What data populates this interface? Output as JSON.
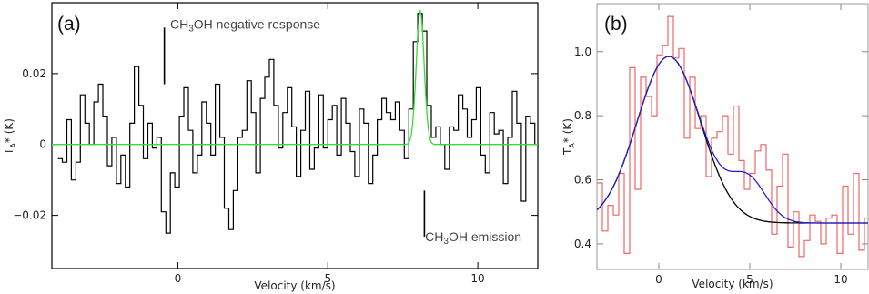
{
  "chart_data": [
    {
      "panel": "(a)",
      "type": "line",
      "xlabel": "Velocity (km/s)",
      "ylabel": "T_A* (K)",
      "xlim": [
        -4.2,
        12.0
      ],
      "ylim": [
        -0.035,
        0.04
      ],
      "xticks": [
        0,
        5,
        10
      ],
      "yticks": [
        -0.02,
        0,
        0.02
      ],
      "ytick_labels": [
        "−0.02",
        "0",
        "0.02"
      ],
      "series": [
        {
          "color": "#000000",
          "style": "step",
          "x": [
            -4.0,
            -3.85,
            -3.7,
            -3.55,
            -3.4,
            -3.25,
            -3.1,
            -2.95,
            -2.8,
            -2.65,
            -2.5,
            -2.35,
            -2.2,
            -2.05,
            -1.9,
            -1.75,
            -1.6,
            -1.45,
            -1.3,
            -1.15,
            -1.0,
            -0.85,
            -0.7,
            -0.55,
            -0.4,
            -0.25,
            -0.1,
            0.05,
            0.2,
            0.35,
            0.5,
            0.65,
            0.8,
            0.95,
            1.1,
            1.25,
            1.4,
            1.55,
            1.7,
            1.85,
            2.0,
            2.15,
            2.3,
            2.45,
            2.6,
            2.75,
            2.9,
            3.05,
            3.2,
            3.35,
            3.5,
            3.65,
            3.8,
            3.95,
            4.1,
            4.25,
            4.4,
            4.55,
            4.7,
            4.85,
            5.0,
            5.15,
            5.3,
            5.45,
            5.6,
            5.75,
            5.9,
            6.05,
            6.2,
            6.35,
            6.5,
            6.65,
            6.8,
            6.95,
            7.1,
            7.25,
            7.4,
            7.55,
            7.7,
            7.85,
            8.0,
            8.15,
            8.3,
            8.45,
            8.6,
            8.75,
            8.9,
            9.05,
            9.2,
            9.35,
            9.5,
            9.65,
            9.8,
            9.95,
            10.1,
            10.25,
            10.4,
            10.55,
            10.7,
            10.85,
            11.0,
            11.15,
            11.3,
            11.45,
            11.6,
            11.75,
            11.9
          ],
          "y": [
            -0.004,
            -0.005,
            0.007,
            -0.01,
            -0.005,
            0.014,
            0.006,
            0.0,
            0.012,
            0.017,
            0.008,
            -0.006,
            0.002,
            -0.011,
            -0.003,
            -0.012,
            0.006,
            0.022,
            0.011,
            -0.004,
            0.006,
            -0.001,
            0.002,
            -0.019,
            -0.025,
            -0.008,
            -0.012,
            0.008,
            0.016,
            0.004,
            -0.008,
            -0.003,
            0.012,
            0.006,
            -0.003,
            0.017,
            0.002,
            -0.018,
            -0.024,
            -0.013,
            0.002,
            0.004,
            0.018,
            0.009,
            -0.008,
            0.013,
            0.019,
            0.024,
            0.011,
            -0.001,
            0.009,
            0.016,
            0.005,
            -0.009,
            0.004,
            0.015,
            -0.007,
            -0.001,
            0.014,
            -0.001,
            0.007,
            0.011,
            -0.003,
            0.013,
            0.006,
            -0.002,
            -0.009,
            0.01,
            0.006,
            -0.011,
            -0.003,
            0.007,
            0.013,
            0.009,
            0.007,
            0.012,
            0.004,
            -0.004,
            0.01,
            0.029,
            0.037,
            0.032,
            0.011,
            0.002,
            0.005,
            0.0,
            -0.007,
            0.005,
            0.004,
            0.014,
            0.01,
            0.002,
            0.007,
            0.016,
            -0.003,
            -0.008,
            0.009,
            0.003,
            0.004,
            -0.011,
            0.002,
            0.015,
            0.006,
            -0.016,
            0.008,
            0.006,
            0.0
          ]
        },
        {
          "color": "#33dd33",
          "style": "gaussian",
          "baseline": 0.0,
          "amplitude": 0.038,
          "center": 8.08,
          "sigma": 0.13
        }
      ],
      "annotations": [
        {
          "text": "CH",
          "sub": "3",
          "rest": "OH negative response",
          "x": -0.5,
          "y": 0.034
        },
        {
          "text": "CH",
          "sub": "3",
          "rest": "OH emission",
          "x": 8.0,
          "y": -0.026
        }
      ],
      "markers": [
        {
          "x": -0.45,
          "y1": 0.017,
          "y2": 0.033
        },
        {
          "x": 8.22,
          "y1": -0.013,
          "y2": -0.026
        }
      ]
    },
    {
      "panel": "(b)",
      "type": "line",
      "xlabel": "Velocity (km/s)",
      "ylabel": "T_A* (K)",
      "xlim": [
        -3.4,
        11.5
      ],
      "ylim": [
        0.32,
        1.15
      ],
      "xticks": [
        0,
        5,
        10
      ],
      "yticks": [
        0.4,
        0.6,
        0.8,
        1.0
      ],
      "ytick_labels": [
        "0.4",
        "0.6",
        "0.8",
        "1.0"
      ],
      "series": [
        {
          "color": "#ee6666",
          "style": "step",
          "x": [
            -3.4,
            -3.1,
            -2.8,
            -2.5,
            -2.2,
            -1.9,
            -1.6,
            -1.3,
            -1.0,
            -0.7,
            -0.4,
            -0.1,
            0.2,
            0.5,
            0.8,
            1.1,
            1.4,
            1.7,
            2.0,
            2.3,
            2.6,
            2.9,
            3.2,
            3.5,
            3.8,
            4.1,
            4.4,
            4.7,
            5.0,
            5.3,
            5.6,
            5.9,
            6.2,
            6.5,
            6.8,
            7.1,
            7.4,
            7.7,
            8.0,
            8.3,
            8.6,
            8.9,
            9.2,
            9.5,
            9.8,
            10.1,
            10.4,
            10.7,
            11.0,
            11.3
          ],
          "y": [
            0.59,
            0.44,
            0.52,
            0.49,
            0.62,
            0.37,
            0.95,
            0.57,
            0.92,
            0.86,
            0.8,
            0.99,
            1.02,
            1.11,
            0.98,
            1.01,
            0.73,
            0.92,
            0.76,
            0.8,
            0.61,
            0.73,
            0.75,
            0.8,
            0.68,
            0.83,
            0.66,
            0.57,
            0.62,
            0.69,
            0.71,
            0.63,
            0.43,
            0.58,
            0.68,
            0.39,
            0.5,
            0.36,
            0.41,
            0.49,
            0.47,
            0.4,
            0.48,
            0.49,
            0.37,
            0.58,
            0.43,
            0.62,
            0.38,
            0.48
          ]
        },
        {
          "color": "#000000",
          "style": "gaussian",
          "baseline": 0.465,
          "amplitude": 0.52,
          "center": 0.55,
          "sigma": 1.75
        },
        {
          "color": "#2222cc",
          "style": "double-gaussian",
          "baseline": 0.465,
          "amplitude": 0.52,
          "center": 0.55,
          "sigma": 1.75,
          "amplitude2": 0.13,
          "center2": 4.9,
          "sigma2": 1.0
        }
      ]
    }
  ]
}
